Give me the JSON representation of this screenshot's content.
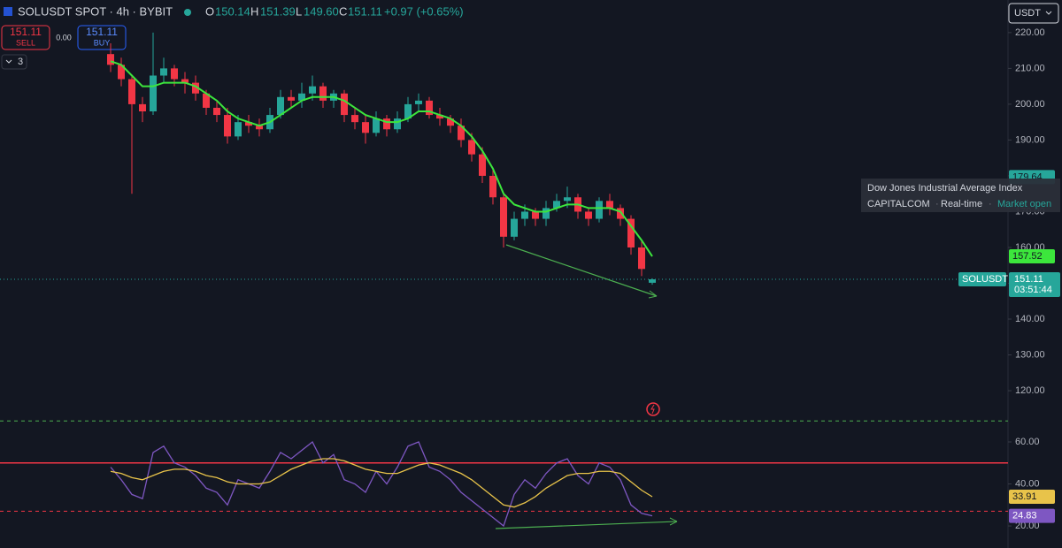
{
  "header": {
    "symbol": "SOLUSDT SPOT · 4h · BYBIT",
    "o_label": "O",
    "open": "150.14",
    "h_label": "H",
    "high": "151.39",
    "l_label": "L",
    "low": "149.60",
    "c_label": "C",
    "close": "151.11",
    "change": "+0.97 (+0.65%)"
  },
  "trade": {
    "sell_price": "151.11",
    "sell": "SELL",
    "spread": "0.00",
    "buy_price": "151.11",
    "buy": "BUY",
    "indicators": "3"
  },
  "currency": "USDT",
  "tooltip": {
    "title": "Dow Jones Industrial Average Index",
    "source": "CAPITALCOM",
    "feed": "Real-time",
    "status": "Market open"
  },
  "chart_data": [
    {
      "type": "candlestick",
      "symbol_label": "SOLUSDT",
      "countdown": "03:51:44",
      "up_color": "#26a69a",
      "down_color": "#f23645",
      "ma_color": "#3ce63c",
      "open": [
        214,
        211,
        207,
        200,
        198,
        208,
        210,
        207,
        206,
        203,
        199,
        197,
        191,
        195,
        194,
        193,
        197,
        202,
        201,
        203,
        205,
        201,
        203,
        197,
        195,
        192,
        196,
        193,
        196,
        200,
        201,
        197,
        196,
        194,
        190,
        186,
        180,
        174,
        163,
        168,
        170,
        168,
        171,
        173,
        174,
        170,
        168,
        173,
        171,
        168,
        160,
        150.14
      ],
      "high": [
        217,
        213,
        208,
        202,
        220,
        213,
        211,
        209,
        208,
        204,
        201,
        199,
        197,
        197,
        196,
        199,
        204,
        204,
        206,
        208,
        206,
        204,
        204,
        199,
        197,
        198,
        197,
        198,
        202,
        203,
        202,
        199,
        197,
        196,
        192,
        188,
        182,
        175,
        170,
        172,
        171,
        173,
        175,
        177,
        175,
        171,
        174,
        175,
        172,
        169,
        162,
        151.39
      ],
      "low": [
        209,
        205,
        175,
        195,
        197,
        206,
        205,
        203,
        201,
        197,
        195,
        189,
        190,
        192,
        191,
        192,
        196,
        199,
        199,
        201,
        199,
        199,
        195,
        193,
        189,
        191,
        191,
        192,
        195,
        198,
        196,
        194,
        192,
        188,
        184,
        178,
        172,
        160,
        162,
        166,
        166,
        166,
        170,
        171,
        168,
        166,
        167,
        169,
        166,
        158,
        152,
        149.6
      ],
      "close": [
        211,
        207,
        200,
        198,
        208,
        210,
        207,
        206,
        203,
        199,
        197,
        191,
        195,
        194,
        193,
        197,
        202,
        201,
        203,
        205,
        201,
        203,
        197,
        195,
        192,
        196,
        193,
        196,
        200,
        201,
        197,
        196,
        194,
        190,
        186,
        180,
        174,
        163,
        168,
        170,
        168,
        171,
        173,
        174,
        170,
        168,
        173,
        171,
        168,
        160,
        154,
        151.11
      ],
      "ma": [
        212,
        211,
        208,
        205,
        205,
        206,
        206,
        206,
        205,
        203,
        201,
        198,
        196,
        195,
        194,
        195,
        197,
        199,
        201,
        202,
        202,
        202,
        201,
        199,
        197,
        196,
        195,
        195,
        196,
        198,
        198,
        197,
        196,
        194,
        191,
        187,
        182,
        175,
        172,
        171,
        170,
        170,
        171,
        172,
        172,
        171,
        171,
        171,
        170,
        166,
        162,
        157.52
      ],
      "alert_price": 179.64,
      "ylim": [
        113.1,
        229.1
      ],
      "yticks": [
        {
          "value": 120,
          "label": "120.00"
        },
        {
          "value": 130,
          "label": "130.00"
        },
        {
          "value": 140,
          "label": "140.00"
        },
        {
          "value": 150,
          "label": "150.00"
        },
        {
          "value": 160,
          "label": "160.00"
        },
        {
          "value": 170,
          "label": "170.00"
        },
        {
          "value": 180,
          "label": "180.00"
        },
        {
          "value": 190,
          "label": "190.00"
        },
        {
          "value": 200,
          "label": "200.00"
        },
        {
          "value": 210,
          "label": "210.00"
        },
        {
          "value": 220,
          "label": "220.00"
        }
      ]
    },
    {
      "type": "line",
      "series": [
        {
          "color": "#7e57c2",
          "values": [
            48,
            42,
            35,
            33,
            55,
            58,
            50,
            48,
            44,
            38,
            36,
            30,
            42,
            40,
            38,
            46,
            55,
            52,
            56,
            60,
            50,
            54,
            42,
            40,
            36,
            46,
            40,
            48,
            58,
            60,
            48,
            46,
            42,
            36,
            32,
            28,
            24,
            20,
            35,
            42,
            38,
            45,
            50,
            52,
            44,
            40,
            50,
            48,
            42,
            30,
            26,
            24.83
          ]
        },
        {
          "color": "#e8c34a",
          "values": [
            46,
            45,
            43,
            42,
            44,
            46,
            47,
            47,
            46,
            44,
            43,
            41,
            40,
            40,
            40,
            41,
            44,
            47,
            49,
            51,
            52,
            52,
            51,
            49,
            47,
            46,
            45,
            45,
            47,
            49,
            50,
            49,
            47,
            45,
            42,
            38,
            34,
            30,
            29,
            31,
            34,
            38,
            41,
            44,
            45,
            45,
            46,
            46,
            45,
            41,
            37,
            33.91
          ]
        }
      ],
      "bands": [
        70,
        50,
        27
      ],
      "ylim": [
        9.5,
        70.1
      ],
      "yticks": [
        {
          "value": 20,
          "label": "20.00"
        },
        {
          "value": 40,
          "label": "40.00"
        },
        {
          "value": 60,
          "label": "60.00"
        }
      ]
    }
  ]
}
